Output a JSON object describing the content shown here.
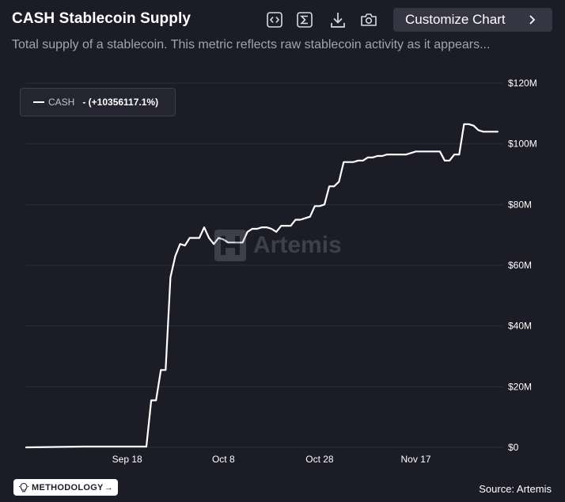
{
  "header": {
    "title": "CASH Stablecoin Supply",
    "subtitle": "Total supply of a stablecoin. This metric reflects raw stablecoin activity as it appears...",
    "customize_label": "Customize Chart",
    "tools": [
      "embed-code-icon",
      "sigma-icon",
      "download-icon",
      "camera-icon"
    ]
  },
  "legend": {
    "name": "CASH",
    "change": "- (+10356117.1%)"
  },
  "watermark": {
    "text": "Artemis"
  },
  "footer": {
    "methodology_label": "METHODOLOGY",
    "methodology_arrow": "→",
    "source": "Source: Artemis"
  },
  "colors": {
    "background": "#1c1c26",
    "line": "#ffffff",
    "grid": "#2e2e3b",
    "button": "#353544"
  },
  "chart_data": {
    "type": "line",
    "title": "CASH Stablecoin Supply",
    "xlabel": "",
    "ylabel": "",
    "ylim": [
      0,
      120000000
    ],
    "y_ticks": [
      0,
      20000000,
      40000000,
      60000000,
      80000000,
      100000000,
      120000000
    ],
    "y_tick_labels": [
      "$0",
      "$20M",
      "$40M",
      "$60M",
      "$80M",
      "$100M",
      "$120M"
    ],
    "x_tick_labels": [
      "Sep 18",
      "Oct 8",
      "Oct 28",
      "Nov 17"
    ],
    "x_tick_values": [
      "2025-09-18",
      "2025-10-08",
      "2025-10-28",
      "2025-11-17"
    ],
    "xlim": [
      "2025-08-28",
      "2025-12-05"
    ],
    "grid": true,
    "legend_position": "top-left",
    "series": [
      {
        "name": "CASH",
        "color": "#ffffff",
        "x": [
          "2025-08-28",
          "2025-09-09",
          "2025-09-22",
          "2025-09-23",
          "2025-09-24",
          "2025-09-25",
          "2025-09-26",
          "2025-09-27",
          "2025-09-28",
          "2025-09-29",
          "2025-09-30",
          "2025-10-01",
          "2025-10-02",
          "2025-10-03",
          "2025-10-04",
          "2025-10-05",
          "2025-10-06",
          "2025-10-07",
          "2025-10-08",
          "2025-10-09",
          "2025-10-10",
          "2025-10-11",
          "2025-10-12",
          "2025-10-13",
          "2025-10-14",
          "2025-10-15",
          "2025-10-16",
          "2025-10-17",
          "2025-10-18",
          "2025-10-19",
          "2025-10-20",
          "2025-10-21",
          "2025-10-22",
          "2025-10-23",
          "2025-10-24",
          "2025-10-25",
          "2025-10-26",
          "2025-10-27",
          "2025-10-28",
          "2025-10-29",
          "2025-10-30",
          "2025-10-31",
          "2025-11-01",
          "2025-11-02",
          "2025-11-03",
          "2025-11-04",
          "2025-11-05",
          "2025-11-06",
          "2025-11-07",
          "2025-11-08",
          "2025-11-09",
          "2025-11-10",
          "2025-11-11",
          "2025-11-12",
          "2025-11-13",
          "2025-11-14",
          "2025-11-15",
          "2025-11-16",
          "2025-11-17",
          "2025-11-18",
          "2025-11-19",
          "2025-11-20",
          "2025-11-21",
          "2025-11-22",
          "2025-11-23",
          "2025-11-24",
          "2025-11-25",
          "2025-11-26",
          "2025-11-27",
          "2025-11-28",
          "2025-11-29",
          "2025-11-30",
          "2025-12-01",
          "2025-12-02",
          "2025-12-03",
          "2025-12-04"
        ],
        "values": [
          0,
          250000,
          250000,
          15500000,
          15500000,
          25500000,
          25500000,
          56000000,
          63000000,
          67000000,
          66500000,
          69000000,
          69000000,
          69000000,
          72500000,
          69000000,
          67000000,
          69000000,
          68500000,
          67500000,
          67500000,
          67500000,
          67500000,
          71000000,
          72000000,
          72000000,
          72500000,
          72500000,
          72000000,
          71000000,
          73000000,
          73000000,
          73000000,
          75000000,
          75000000,
          75500000,
          76000000,
          79500000,
          79500000,
          80000000,
          86000000,
          86000000,
          87500000,
          94000000,
          94000000,
          94000000,
          94500000,
          94500000,
          95500000,
          95500000,
          96000000,
          96000000,
          96500000,
          96500000,
          96500000,
          96500000,
          96500000,
          97000000,
          97500000,
          97500000,
          97500000,
          97500000,
          97500000,
          97500000,
          94500000,
          94500000,
          96500000,
          96500000,
          106500000,
          106500000,
          106000000,
          104500000,
          104000000,
          104000000,
          104000000,
          104000000
        ]
      }
    ]
  }
}
